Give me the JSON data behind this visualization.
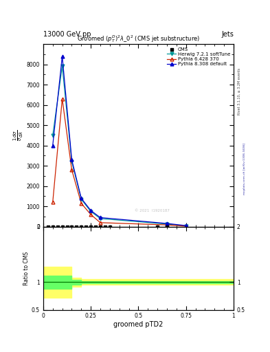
{
  "header_left": "13000 GeV pp",
  "header_right": "Jets",
  "title": "Groomed $(p_T^D)^2\\lambda\\_0^2$ (CMS jet substructure)",
  "xlabel": "groomed pTD2",
  "ylabel_ratio": "Ratio to CMS",
  "right_label_top": "Rivet 3.1.10, ≥ 3.2M events",
  "right_label_bot": "mcplots.cern.ch [arXiv:1306.3436]",
  "watermark": "© 2021  I1920187",
  "herwig_x": [
    0.05,
    0.1,
    0.15,
    0.2,
    0.25,
    0.3,
    0.65,
    0.75
  ],
  "herwig_y": [
    4500,
    7900,
    3200,
    1350,
    750,
    400,
    130,
    40
  ],
  "pythia6_x": [
    0.05,
    0.1,
    0.15,
    0.2,
    0.25,
    0.3,
    0.65,
    0.75
  ],
  "pythia6_y": [
    1200,
    6300,
    2800,
    1150,
    600,
    200,
    90,
    25
  ],
  "pythia8_x": [
    0.05,
    0.1,
    0.15,
    0.2,
    0.25,
    0.3,
    0.65,
    0.75
  ],
  "pythia8_y": [
    4000,
    8400,
    3300,
    1400,
    800,
    450,
    160,
    55
  ],
  "cms_sq_x": [
    0.025,
    0.05,
    0.075,
    0.1,
    0.125,
    0.15,
    0.175,
    0.2,
    0.225,
    0.25,
    0.275,
    0.3,
    0.325,
    0.35,
    0.6,
    0.65
  ],
  "cms_sq_y": [
    0,
    0,
    0,
    0,
    0,
    0,
    0,
    0,
    0,
    0,
    0,
    0,
    0,
    0,
    0,
    0
  ],
  "ylim_main": [
    0,
    9000
  ],
  "xlim": [
    0,
    1.0
  ],
  "ylim_ratio": [
    0.5,
    2.0
  ],
  "yticks_main": [
    0,
    1000,
    2000,
    3000,
    4000,
    5000,
    6000,
    7000,
    8000
  ],
  "herwig_color": "#009999",
  "pythia6_color": "#CC2200",
  "pythia8_color": "#0000CC",
  "cms_color": "#000000",
  "band_yellow": "#FFFF66",
  "band_green": "#66FF66",
  "ratio_line_color": "#007700",
  "ratio_band_edges": [
    0.0,
    0.05,
    0.15,
    0.2,
    1.0
  ],
  "ratio_yellow_lo": [
    0.72,
    0.72,
    0.92,
    0.95,
    0.95
  ],
  "ratio_yellow_hi": [
    1.28,
    1.28,
    1.08,
    1.05,
    1.05
  ],
  "ratio_green_lo": [
    0.88,
    0.88,
    0.96,
    0.98,
    0.98
  ],
  "ratio_green_hi": [
    1.12,
    1.12,
    1.04,
    1.02,
    1.02
  ]
}
